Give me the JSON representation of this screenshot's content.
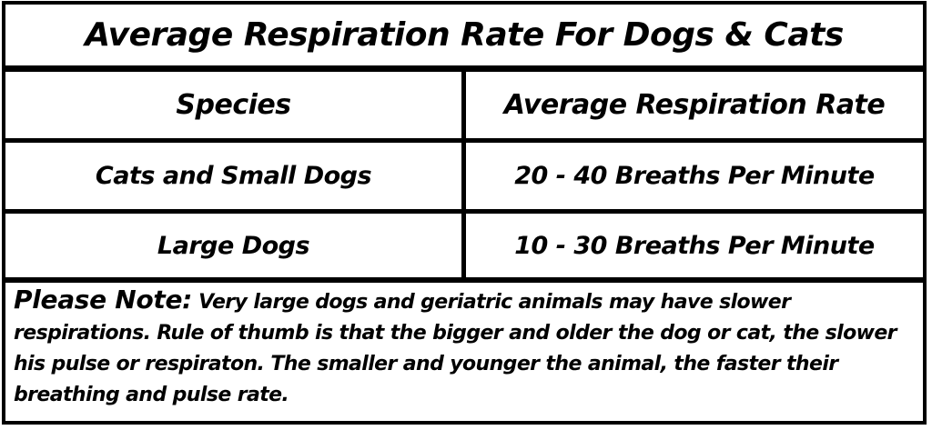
{
  "title": "Average Respiration Rate For Dogs & Cats",
  "table": {
    "headers": [
      "Species",
      "Average Respiration Rate"
    ],
    "rows": [
      {
        "species": "Cats and Small Dogs",
        "rate": "20 - 40 Breaths Per Minute"
      },
      {
        "species": "Large Dogs",
        "rate": "10 - 30 Breaths Per Minute"
      }
    ]
  },
  "note": {
    "label": "Please Note:",
    "text": " Very large dogs and geriatric animals may have slower respirations. Rule of thumb is that the bigger and older the dog or cat, the slower his pulse or respiraton.  The smaller and younger the animal, the faster their breathing and pulse rate."
  },
  "colors": {
    "border": "#000000",
    "background": "#ffffff",
    "text": "#000000"
  }
}
